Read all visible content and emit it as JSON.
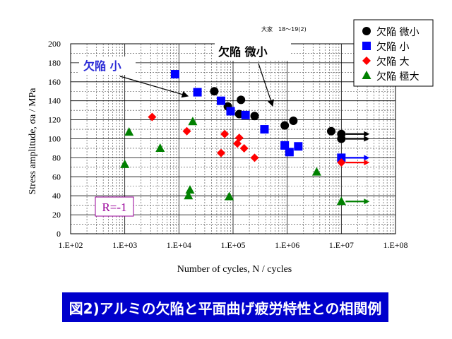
{
  "source_note": "大家　18～19(2)",
  "caption": "図2)アルミの欠陥と平面曲げ疲労特性との相関例",
  "annotations": {
    "small_label": "欠陥 小",
    "micro_label": "欠陥 微小",
    "r_label": "R=-1"
  },
  "colors": {
    "micro": "#000000",
    "small": "#0000ff",
    "large": "#ff0000",
    "very_large": "#008000",
    "caption_bg": "#0000cc",
    "small_label": "#2b2bd6",
    "r_box": "#990099"
  },
  "chart_data": {
    "type": "scatter",
    "xscale": "log",
    "xlabel": "Number of cycles, N / cycles",
    "ylabel": "Stress amplitude, σa / MPa",
    "xlim": [
      100,
      100000000
    ],
    "ylim": [
      0,
      200
    ],
    "xticks": [
      "1.E+02",
      "1.E+03",
      "1.E+04",
      "1.E+05",
      "1.E+06",
      "1.E+07",
      "1.E+08"
    ],
    "yticks": [
      "0",
      "20",
      "40",
      "60",
      "80",
      "100",
      "120",
      "140",
      "160",
      "180",
      "200"
    ],
    "grid": true,
    "legend_position": "top-right",
    "series": [
      {
        "name": "欠陥 微小",
        "marker": "circle",
        "color": "#000000",
        "points": [
          [
            45000,
            150
          ],
          [
            80000,
            134
          ],
          [
            130000,
            126
          ],
          [
            140000,
            141
          ],
          [
            250000,
            124
          ],
          [
            900000,
            114
          ],
          [
            1300000,
            119
          ],
          [
            6500000,
            108
          ],
          [
            10000000,
            105
          ],
          [
            10000000,
            100
          ]
        ],
        "runouts": [
          [
            10000000,
            105
          ],
          [
            10000000,
            100
          ]
        ]
      },
      {
        "name": "欠陥 小",
        "marker": "square",
        "color": "#0000ff",
        "points": [
          [
            8500,
            168
          ],
          [
            22000,
            149
          ],
          [
            60000,
            140
          ],
          [
            90000,
            129
          ],
          [
            170000,
            125
          ],
          [
            380000,
            110
          ],
          [
            900000,
            93
          ],
          [
            1100000,
            86
          ],
          [
            1600000,
            92
          ],
          [
            10000000,
            80
          ]
        ],
        "runouts": [
          [
            10000000,
            80
          ]
        ]
      },
      {
        "name": "欠陥 大",
        "marker": "diamond",
        "color": "#ff0000",
        "points": [
          [
            3200,
            123
          ],
          [
            14000,
            108
          ],
          [
            60000,
            85
          ],
          [
            70000,
            105
          ],
          [
            120000,
            95
          ],
          [
            130000,
            101
          ],
          [
            160000,
            90
          ],
          [
            250000,
            80
          ],
          [
            10000000,
            75
          ]
        ],
        "runouts": [
          [
            10000000,
            75
          ]
        ]
      },
      {
        "name": "欠陥 極大",
        "marker": "triangle",
        "color": "#008000",
        "points": [
          [
            1000,
            73
          ],
          [
            1200,
            107
          ],
          [
            4500,
            90
          ],
          [
            18000,
            118
          ],
          [
            15000,
            40
          ],
          [
            16000,
            46
          ],
          [
            85000,
            39
          ],
          [
            3500000,
            65
          ],
          [
            10000000,
            34
          ]
        ],
        "runouts": [
          [
            10000000,
            34
          ]
        ]
      }
    ]
  }
}
